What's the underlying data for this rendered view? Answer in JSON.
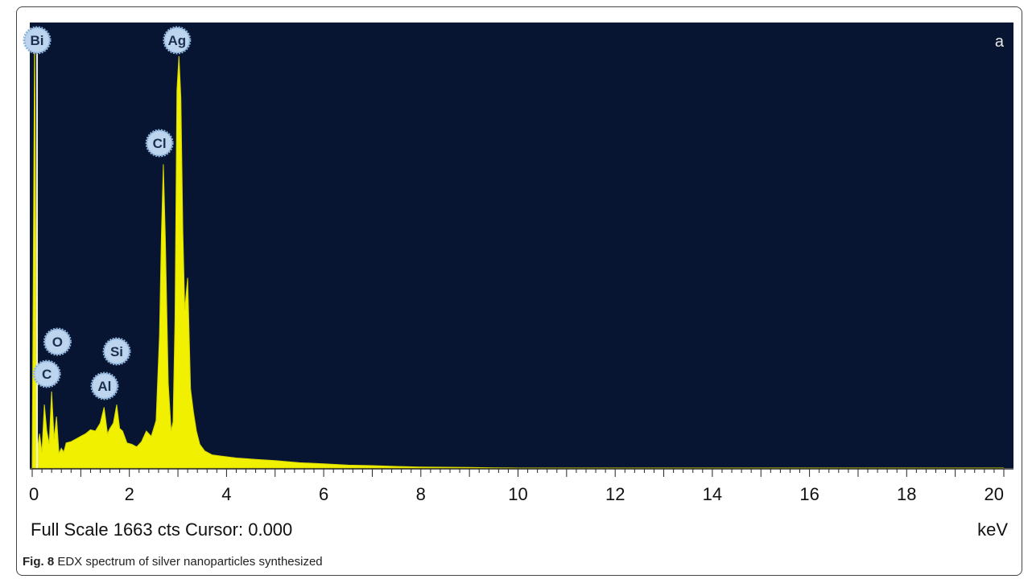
{
  "chart_data": {
    "type": "area",
    "panel_label": "a",
    "xlabel": "keV",
    "ylabel": "",
    "xlim": [
      0,
      20
    ],
    "ylim": [
      0,
      1663
    ],
    "x_ticks": [
      "0",
      "2",
      "4",
      "6",
      "8",
      "10",
      "12",
      "14",
      "16",
      "18",
      "20"
    ],
    "footer_text": "Full Scale 1663 cts Cursor: 0.000",
    "colors": {
      "plot_background": "#071532",
      "spectrum_fill": "#f0f000",
      "marker_ring": "#8fb4dc",
      "marker_fill": "#bcd4ee"
    },
    "series": [
      {
        "x": [
          0,
          0.05,
          0.1,
          0.15,
          0.2,
          0.25,
          0.3,
          0.35,
          0.4,
          0.45,
          0.5,
          0.55,
          0.6,
          0.65,
          0.7,
          0.8,
          0.9,
          1.0,
          1.1,
          1.2,
          1.3,
          1.4,
          1.48,
          1.55,
          1.6,
          1.67,
          1.74,
          1.8,
          1.86,
          1.95,
          2.05,
          2.15,
          2.25,
          2.35,
          2.45,
          2.55,
          2.62,
          2.66,
          2.7,
          2.74,
          2.8,
          2.86,
          2.9,
          2.94,
          2.98,
          3.02,
          3.06,
          3.1,
          3.14,
          3.2,
          3.26,
          3.32,
          3.38,
          3.45,
          3.55,
          3.7,
          3.9,
          4.2,
          4.6,
          5.0,
          5.5,
          6.0,
          6.5,
          7.0,
          7.5,
          8.0,
          8.5,
          9.0,
          9.5,
          10,
          12,
          14,
          16,
          18,
          20
        ],
        "y": [
          0,
          1650,
          60,
          130,
          60,
          240,
          140,
          90,
          290,
          110,
          195,
          55,
          75,
          60,
          95,
          100,
          110,
          120,
          130,
          145,
          140,
          170,
          230,
          130,
          150,
          170,
          240,
          150,
          140,
          95,
          90,
          80,
          100,
          140,
          120,
          180,
          500,
          880,
          1150,
          870,
          320,
          140,
          175,
          560,
          1430,
          1560,
          1400,
          900,
          600,
          720,
          300,
          210,
          140,
          90,
          65,
          50,
          45,
          38,
          33,
          28,
          20,
          16,
          11,
          9,
          6,
          4,
          3,
          2,
          1,
          0,
          0,
          0,
          0,
          0,
          0
        ]
      }
    ],
    "peaks": [
      {
        "label": "Bi",
        "x": 0.1
      },
      {
        "label": "C",
        "x": 0.3
      },
      {
        "label": "O",
        "x": 0.52
      },
      {
        "label": "Al",
        "x": 1.49
      },
      {
        "label": "Si",
        "x": 1.74
      },
      {
        "label": "Cl",
        "x": 2.62
      },
      {
        "label": "Ag",
        "x": 2.98
      }
    ]
  },
  "caption": {
    "fig_label": "Fig. 8",
    "text": " EDX spectrum of silver nanoparticles synthesized"
  }
}
